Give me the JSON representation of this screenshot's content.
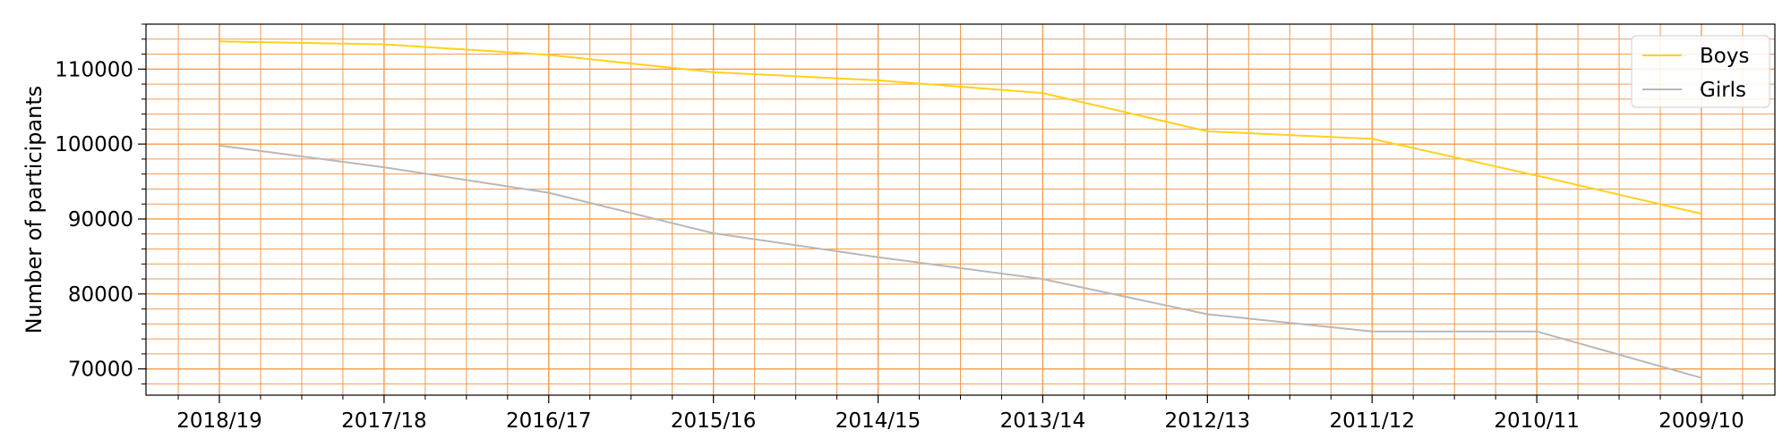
{
  "chart_data": {
    "type": "line",
    "title": "",
    "xlabel": "",
    "ylabel": "Number of participants",
    "categories": [
      "2018/19",
      "2017/18",
      "2016/17",
      "2015/16",
      "2014/15",
      "2013/14",
      "2012/13",
      "2011/12",
      "2010/11",
      "2009/10"
    ],
    "series": [
      {
        "name": "Boys",
        "color": "#ffd11a",
        "values": [
          113700,
          113300,
          111900,
          109600,
          108500,
          106800,
          101700,
          100700,
          95800,
          90700
        ]
      },
      {
        "name": "Girls",
        "color": "#b8b8b8",
        "values": [
          99800,
          96900,
          93500,
          88100,
          84900,
          82000,
          77300,
          75000,
          75000,
          68800
        ]
      }
    ],
    "ylim": [
      66500,
      116000
    ],
    "yticks": [
      70000,
      80000,
      90000,
      100000,
      110000
    ],
    "grid": true,
    "grid_color": "#f39c4d",
    "legend_position": "top-right"
  }
}
